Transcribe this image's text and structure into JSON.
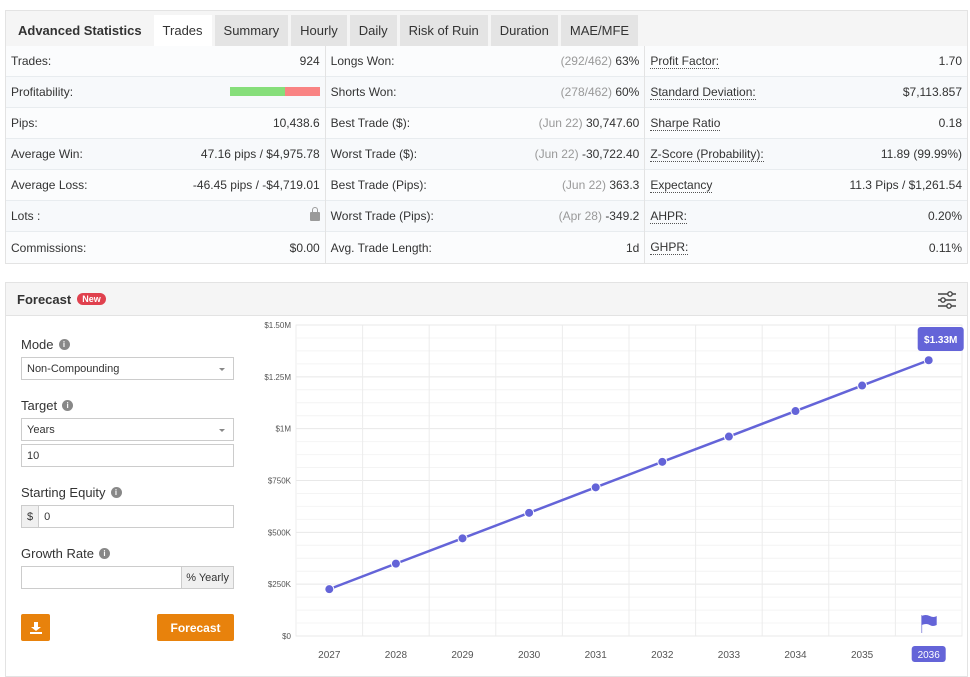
{
  "tabs": {
    "title": "Advanced Statistics",
    "items": [
      "Trades",
      "Summary",
      "Hourly",
      "Daily",
      "Risk of Ruin",
      "Duration",
      "MAE/MFE"
    ],
    "active": "Trades"
  },
  "stats": {
    "col1": [
      {
        "label": "Trades:",
        "value": "924"
      },
      {
        "label": "Profitability:",
        "value": "",
        "bar": {
          "won_pct": 62,
          "lost_pct": 38
        }
      },
      {
        "label": "Pips:",
        "value": "10,438.6"
      },
      {
        "label": "Average Win:",
        "value": "47.16 pips / $4,975.78"
      },
      {
        "label": "Average Loss:",
        "value": "-46.45 pips / -$4,719.01"
      },
      {
        "label": "Lots :",
        "value": "",
        "icon": "lock-icon"
      },
      {
        "label": "Commissions:",
        "value": "$0.00"
      }
    ],
    "col2": [
      {
        "label": "Longs Won:",
        "note": "(292/462)",
        "value": "63%"
      },
      {
        "label": "Shorts Won:",
        "note": "(278/462)",
        "value": "60%"
      },
      {
        "label": "Best Trade ($):",
        "note": "(Jun 22)",
        "value": "30,747.60"
      },
      {
        "label": "Worst Trade ($):",
        "note": "(Jun 22)",
        "value": "-30,722.40"
      },
      {
        "label": "Best Trade (Pips):",
        "note": "(Jun 22)",
        "value": "363.3"
      },
      {
        "label": "Worst Trade (Pips):",
        "note": "(Apr 28)",
        "value": "-349.2"
      },
      {
        "label": "Avg. Trade Length:",
        "note": "",
        "value": "1d"
      }
    ],
    "col3": [
      {
        "label": "Profit Factor:",
        "value": "1.70"
      },
      {
        "label": "Standard Deviation:",
        "value": "$7,113.857"
      },
      {
        "label": "Sharpe Ratio",
        "value": "0.18"
      },
      {
        "label": "Z-Score (Probability):",
        "value": "11.89 (99.99%)"
      },
      {
        "label": "Expectancy",
        "value": "11.3 Pips / $1,261.54"
      },
      {
        "label": "AHPR:",
        "value": "0.20%"
      },
      {
        "label": "GHPR:",
        "value": "0.11%"
      }
    ]
  },
  "forecast": {
    "title": "Forecast",
    "badge": "New",
    "mode_label": "Mode",
    "mode_value": "Non-Compounding",
    "target_label": "Target",
    "target_unit": "Years",
    "target_value": "10",
    "equity_label": "Starting Equity",
    "equity_prefix": "$",
    "equity_value": "0",
    "growth_label": "Growth Rate",
    "growth_value": "",
    "growth_suffix": "% Yearly",
    "forecast_button": "Forecast"
  },
  "colors": {
    "accent": "#e8820c",
    "line": "#6464d8",
    "badge": "#e0414e"
  },
  "chart_data": {
    "type": "line",
    "categories": [
      "2027",
      "2028",
      "2029",
      "2030",
      "2031",
      "2032",
      "2033",
      "2034",
      "2035",
      "2036"
    ],
    "values": [
      226000,
      349000,
      471000,
      594000,
      717000,
      840000,
      962000,
      1085000,
      1208000,
      1330000
    ],
    "ylim": [
      0,
      1500000
    ],
    "yticks": [
      {
        "v": 0,
        "label": "$0"
      },
      {
        "v": 250000,
        "label": "$250K"
      },
      {
        "v": 500000,
        "label": "$500K"
      },
      {
        "v": 750000,
        "label": "$750K"
      },
      {
        "v": 1000000,
        "label": "$1M"
      },
      {
        "v": 1250000,
        "label": "$1.25M"
      },
      {
        "v": 1500000,
        "label": "$1.50M"
      }
    ],
    "highlight": {
      "category": "2036",
      "label": "$1.33M"
    },
    "grid": true
  }
}
